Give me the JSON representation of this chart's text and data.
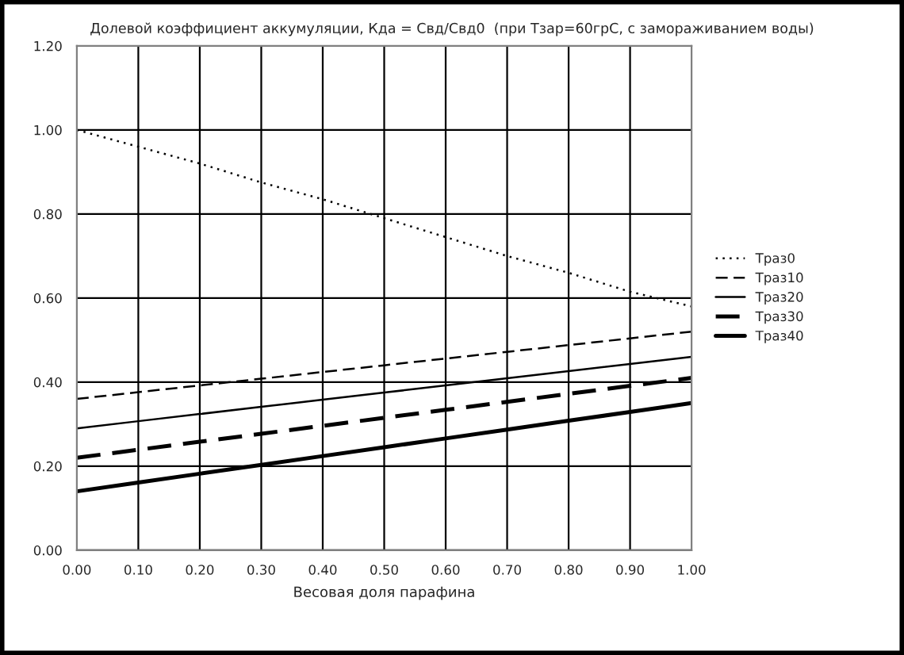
{
  "chart_data": {
    "type": "line",
    "title": "Долевой коэффициент аккумуляции, Кда = Свд/Свд0  (при Тзар=60грС, с замораживанием воды)",
    "xlabel": "Весовая доля парафина",
    "x": [
      0.0,
      0.1,
      0.2,
      0.3,
      0.4,
      0.5,
      0.6,
      0.7,
      0.8,
      0.9,
      1.0
    ],
    "series": [
      {
        "name": "Траз0",
        "color": "#000000",
        "line_style": "dotted",
        "values": [
          1.0,
          0.96,
          0.92,
          0.875,
          0.835,
          0.79,
          0.745,
          0.7,
          0.66,
          0.615,
          0.58
        ]
      },
      {
        "name": "Траз10",
        "color": "#000000",
        "line_style": "dashed",
        "values": [
          0.36,
          0.376,
          0.392,
          0.408,
          0.424,
          0.44,
          0.456,
          0.472,
          0.488,
          0.504,
          0.52
        ]
      },
      {
        "name": "Траз20",
        "color": "#000000",
        "line_style": "solid",
        "values": [
          0.29,
          0.307,
          0.324,
          0.341,
          0.358,
          0.375,
          0.392,
          0.409,
          0.426,
          0.443,
          0.46
        ]
      },
      {
        "name": "Траз30",
        "color": "#000000",
        "line_style": "dashed",
        "values": [
          0.22,
          0.239,
          0.258,
          0.277,
          0.296,
          0.315,
          0.334,
          0.353,
          0.372,
          0.391,
          0.41
        ]
      },
      {
        "name": "Траз40",
        "color": "#000000",
        "line_style": "solid",
        "values": [
          0.14,
          0.161,
          0.182,
          0.203,
          0.224,
          0.245,
          0.266,
          0.287,
          0.308,
          0.329,
          0.35
        ]
      }
    ],
    "xlim": [
      0,
      1
    ],
    "xticks": [
      {
        "value": 0,
        "label": "0.00"
      },
      {
        "value": 0.1,
        "label": "0.10"
      },
      {
        "value": 0.2,
        "label": "0.20"
      },
      {
        "value": 0.3,
        "label": "0.30"
      },
      {
        "value": 0.4,
        "label": "0.40"
      },
      {
        "value": 0.5,
        "label": "0.50"
      },
      {
        "value": 0.6,
        "label": "0.60"
      },
      {
        "value": 0.7,
        "label": "0.70"
      },
      {
        "value": 0.8,
        "label": "0.80"
      },
      {
        "value": 0.9,
        "label": "0.90"
      },
      {
        "value": 1,
        "label": "1.00"
      }
    ],
    "ylim": [
      0,
      1.2
    ],
    "yticks": [
      {
        "value": 0,
        "label": "0.00"
      },
      {
        "value": 0.2,
        "label": "0.20"
      },
      {
        "value": 0.4,
        "label": "0.40"
      },
      {
        "value": 0.6,
        "label": "0.60"
      },
      {
        "value": 0.8,
        "label": "0.80"
      },
      {
        "value": 1.0,
        "label": "1.00"
      },
      {
        "value": 1.2,
        "label": "1.20"
      }
    ],
    "grid": true,
    "legend": "right",
    "marker": "none"
  }
}
